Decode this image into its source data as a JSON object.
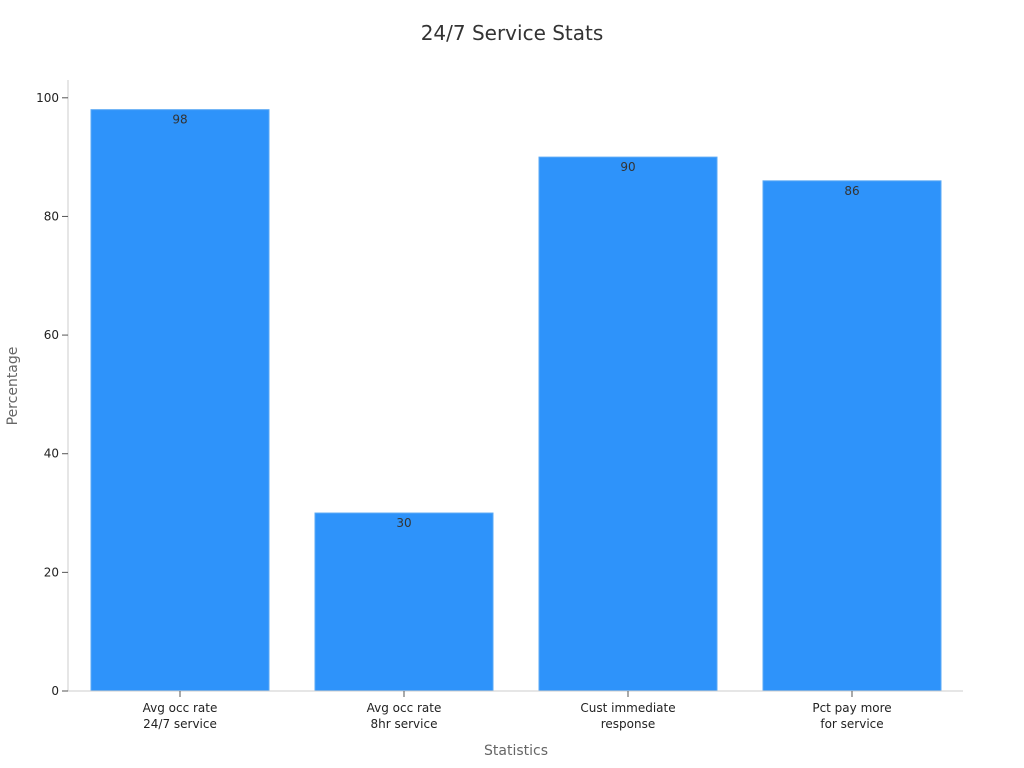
{
  "chart_data": {
    "type": "bar",
    "title": "24/7 Service Stats",
    "xlabel": "Statistics",
    "ylabel": "Percentage",
    "categories": [
      [
        "Avg occ rate",
        "24/7 service"
      ],
      [
        "Avg occ rate",
        "8hr service"
      ],
      [
        "Cust immediate",
        "response"
      ],
      [
        "Pct pay more",
        "for service"
      ]
    ],
    "values": [
      98,
      30,
      90,
      86
    ],
    "ylim": [
      0,
      103
    ],
    "yticks": [
      0,
      20,
      40,
      60,
      80,
      100
    ],
    "grid": false,
    "legend": "none"
  },
  "colors": {
    "bar": "#2E93FA",
    "bar_edge": "#5aa9f5",
    "axis": "#cccccc",
    "tick": "#555555"
  }
}
